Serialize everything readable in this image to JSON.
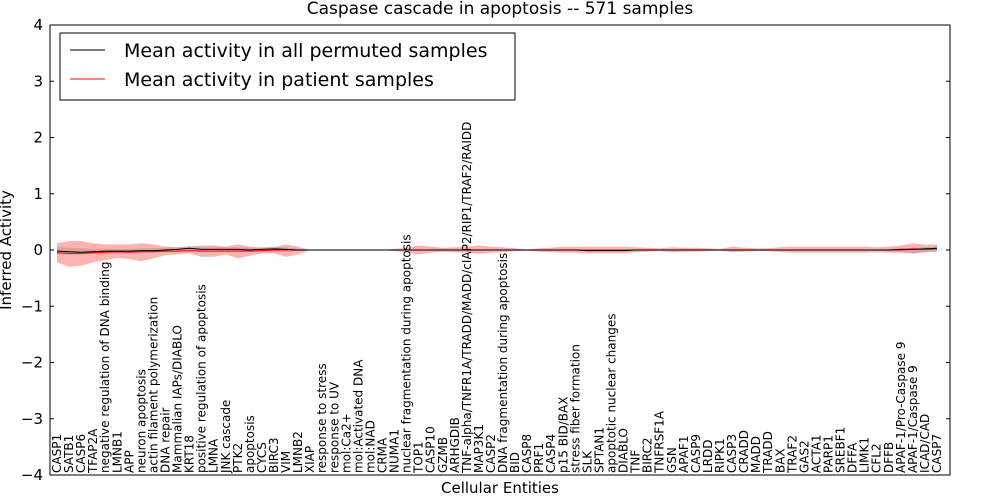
{
  "chart_data": {
    "type": "line",
    "title": "Caspase cascade in apoptosis -- 571 samples",
    "xlabel": "Cellular Entities",
    "ylabel": "Inferred Activity",
    "ylim": [
      -4,
      4
    ],
    "yticks": [
      -4,
      -3,
      -2,
      -1,
      0,
      1,
      2,
      3,
      4
    ],
    "ytick_labels": [
      "−4",
      "−3",
      "−2",
      "−1",
      "0",
      "1",
      "2",
      "3",
      "4"
    ],
    "legend_position": "top-left",
    "categories": [
      "CASP1",
      "SATB1",
      "CASP6",
      "TFAP2A",
      "negative regulation of DNA binding",
      "LMNB1",
      "APP",
      "neuron apoptosis",
      "actin filament polymerization",
      "DNA repair",
      "Mammalian IAPs/DIABLO",
      "KRT18",
      "positive regulation of apoptosis",
      "LMNA",
      "JNK cascade",
      "PTK2",
      "apoptosis",
      "CYCS",
      "BIRC3",
      "VIM",
      "LMNB2",
      "XIAP",
      "response to stress",
      "response to UV",
      "mol:Ca2+",
      "mol:Activated DNA",
      "mol:NAD",
      "CRMA",
      "NUMA1",
      "nuclear fragmentation during apoptosis",
      "TOP1",
      "CASP10",
      "GZMB",
      "ARHGDIB",
      "TNF-alpha/TNFR1A/TRADD/MADD/cIAP2/RIP1/TRAF2/RAIDD",
      "MAP3K1",
      "CASP2",
      "DNA fragmentation during apoptosis",
      "BID",
      "CASP8",
      "PRF1",
      "CASP4",
      "p15 BID/BAX",
      "stress fiber formation",
      "SLK",
      "SPTAN1",
      "apoptotic nuclear changes",
      "DIABLO",
      "TNF",
      "BIRC2",
      "TNFRSF1A",
      "GSN",
      "APAF1",
      "CASP9",
      "LRDD",
      "RIPK1",
      "CASP3",
      "CRADD",
      "MADD",
      "TRADD",
      "BAX",
      "TRAF2",
      "GAS2",
      "ACTA1",
      "PARP1",
      "SREBF1",
      "DFFA",
      "LIMK1",
      "CFL2",
      "DFFB",
      "APAF-1/Pro-Caspase 9",
      "APAF-1/Caspase 9",
      "ICAD/CAD",
      "CASP7"
    ],
    "series": [
      {
        "name": "Mean activity in all permuted samples",
        "color": "#000000",
        "values": [
          -0.02,
          -0.03,
          -0.04,
          -0.03,
          -0.02,
          -0.02,
          -0.02,
          -0.01,
          -0.01,
          0.0,
          0.01,
          0.03,
          0.01,
          0.01,
          0.01,
          0.01,
          0.0,
          0.01,
          0.02,
          0.01,
          0.0,
          0.0,
          0.0,
          0.0,
          0.0,
          0.0,
          0.0,
          0.0,
          0.0,
          0.0,
          0.0,
          0.0,
          0.0,
          0.0,
          0.0,
          0.0,
          0.0,
          0.0,
          0.0,
          0.0,
          0.0,
          0.0,
          0.0,
          0.0,
          -0.01,
          -0.01,
          -0.01,
          -0.01,
          0.0,
          0.0,
          0.0,
          0.0,
          0.0,
          0.0,
          0.0,
          0.0,
          0.0,
          0.0,
          0.0,
          0.0,
          0.0,
          0.0,
          0.0,
          0.0,
          0.0,
          0.0,
          0.0,
          0.0,
          0.0,
          0.0,
          0.01,
          0.01,
          0.02,
          0.03
        ],
        "band_lower": [
          -0.08,
          -0.08,
          -0.08,
          -0.07,
          -0.06,
          -0.06,
          -0.05,
          -0.05,
          -0.04,
          -0.04,
          -0.03,
          -0.02,
          -0.03,
          -0.03,
          -0.03,
          -0.03,
          -0.03,
          -0.03,
          -0.02,
          -0.03,
          -0.02,
          -0.01,
          -0.01,
          -0.01,
          -0.01,
          -0.01,
          -0.01,
          -0.01,
          -0.01,
          -0.01,
          -0.01,
          -0.01,
          -0.01,
          -0.01,
          -0.01,
          -0.01,
          -0.01,
          -0.01,
          -0.01,
          -0.01,
          -0.01,
          -0.01,
          -0.01,
          -0.01,
          -0.02,
          -0.02,
          -0.02,
          -0.02,
          -0.01,
          -0.01,
          -0.01,
          -0.01,
          -0.01,
          -0.01,
          -0.01,
          -0.01,
          -0.01,
          -0.01,
          -0.01,
          -0.01,
          -0.01,
          -0.01,
          -0.01,
          -0.01,
          -0.01,
          -0.01,
          -0.01,
          -0.01,
          -0.01,
          -0.02,
          -0.03,
          -0.06,
          -0.04,
          -0.02
        ],
        "band_upper": [
          0.05,
          0.04,
          0.03,
          0.02,
          0.02,
          0.02,
          0.02,
          0.03,
          0.03,
          0.04,
          0.05,
          0.07,
          0.05,
          0.05,
          0.05,
          0.05,
          0.04,
          0.05,
          0.06,
          0.05,
          0.02,
          0.01,
          0.01,
          0.01,
          0.01,
          0.01,
          0.01,
          0.01,
          0.01,
          0.01,
          0.01,
          0.01,
          0.01,
          0.01,
          0.01,
          0.01,
          0.01,
          0.01,
          0.01,
          0.01,
          0.01,
          0.01,
          0.01,
          0.01,
          0.0,
          0.0,
          0.0,
          0.0,
          0.01,
          0.01,
          0.01,
          0.01,
          0.01,
          0.01,
          0.01,
          0.01,
          0.01,
          0.01,
          0.01,
          0.01,
          0.01,
          0.01,
          0.01,
          0.01,
          0.01,
          0.01,
          0.01,
          0.01,
          0.01,
          0.02,
          0.03,
          0.04,
          0.05,
          0.06
        ]
      },
      {
        "name": "Mean activity in patient samples",
        "color": "#ff0000",
        "values": [
          -0.05,
          -0.06,
          -0.06,
          -0.05,
          -0.04,
          -0.03,
          -0.04,
          -0.03,
          -0.03,
          -0.02,
          -0.02,
          -0.01,
          -0.02,
          -0.02,
          -0.02,
          -0.02,
          -0.02,
          -0.01,
          0.0,
          0.0,
          0.0,
          0.0,
          0.0,
          0.0,
          0.0,
          0.0,
          0.0,
          0.0,
          0.0,
          0.0,
          0.0,
          0.0,
          0.0,
          0.0,
          0.0,
          0.0,
          0.0,
          0.0,
          0.0,
          0.0,
          0.0,
          0.0,
          0.0,
          0.0,
          0.0,
          0.0,
          0.0,
          0.0,
          0.0,
          0.0,
          0.0,
          0.0,
          0.0,
          0.0,
          0.0,
          0.0,
          0.0,
          0.0,
          0.0,
          0.0,
          0.0,
          0.0,
          0.0,
          0.0,
          0.0,
          0.0,
          0.0,
          0.0,
          0.0,
          0.0,
          0.0,
          0.02,
          0.01,
          0.02
        ],
        "band_lower": [
          -0.22,
          -0.3,
          -0.28,
          -0.22,
          -0.18,
          -0.14,
          -0.16,
          -0.2,
          -0.15,
          -0.09,
          -0.08,
          -0.06,
          -0.12,
          -0.12,
          -0.08,
          -0.15,
          -0.1,
          -0.06,
          -0.06,
          -0.12,
          -0.08,
          0.0,
          0.0,
          0.0,
          0.0,
          0.0,
          0.0,
          0.0,
          -0.02,
          -0.04,
          -0.08,
          -0.05,
          -0.03,
          -0.04,
          -0.05,
          -0.07,
          -0.05,
          -0.04,
          -0.02,
          -0.01,
          -0.03,
          -0.04,
          -0.05,
          -0.05,
          -0.06,
          -0.06,
          -0.06,
          -0.06,
          -0.04,
          -0.03,
          -0.02,
          -0.04,
          -0.03,
          -0.03,
          -0.02,
          -0.01,
          -0.04,
          -0.03,
          -0.02,
          -0.02,
          -0.04,
          -0.05,
          -0.05,
          -0.05,
          -0.05,
          -0.05,
          -0.05,
          -0.05,
          -0.04,
          -0.05,
          -0.05,
          -0.06,
          -0.04,
          -0.03
        ],
        "band_upper": [
          0.12,
          0.16,
          0.16,
          0.12,
          0.1,
          0.1,
          0.1,
          0.12,
          0.1,
          0.06,
          0.05,
          0.06,
          0.08,
          0.08,
          0.06,
          0.1,
          0.06,
          0.04,
          0.05,
          0.1,
          0.06,
          0.0,
          0.0,
          0.0,
          0.0,
          0.0,
          0.0,
          0.0,
          0.02,
          0.04,
          0.08,
          0.06,
          0.04,
          0.05,
          0.06,
          0.08,
          0.06,
          0.05,
          0.03,
          0.01,
          0.03,
          0.04,
          0.06,
          0.06,
          0.06,
          0.06,
          0.06,
          0.06,
          0.05,
          0.04,
          0.03,
          0.05,
          0.04,
          0.04,
          0.03,
          0.02,
          0.06,
          0.04,
          0.03,
          0.03,
          0.05,
          0.06,
          0.06,
          0.06,
          0.06,
          0.06,
          0.06,
          0.06,
          0.05,
          0.06,
          0.08,
          0.12,
          0.09,
          0.1
        ]
      }
    ]
  }
}
